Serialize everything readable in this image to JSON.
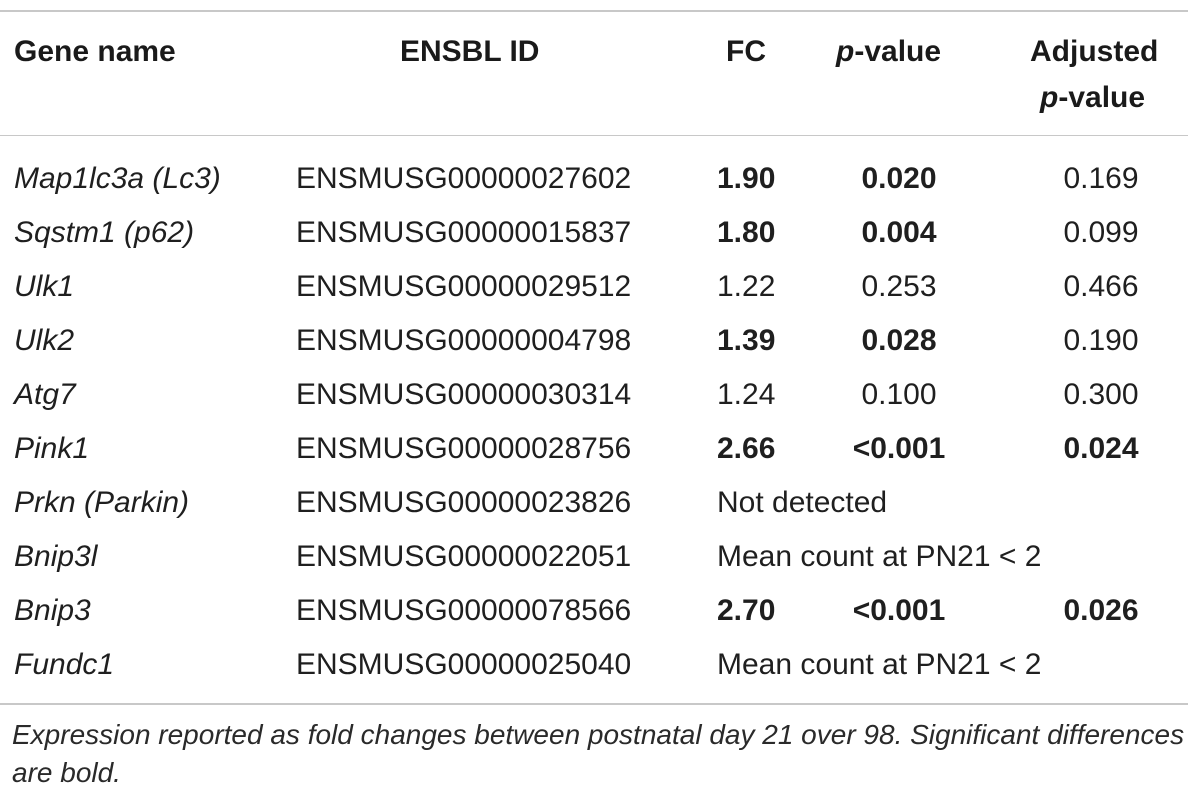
{
  "table": {
    "headers": {
      "gene": "Gene name",
      "ensbl": "ENSBL ID",
      "fc": "FC",
      "pvalue_italic": "p",
      "pvalue_rest": "-value",
      "adjusted_line1": "Adjusted",
      "adjusted_italic": "p",
      "adjusted_rest": "-value"
    },
    "rows": [
      {
        "gene": "Map1lc3a (Lc3)",
        "id": "ENSMUSG00000027602",
        "fc": "1.90",
        "p": "0.020",
        "adj": "0.169",
        "fc_bold": true,
        "p_bold": true,
        "adj_bold": false
      },
      {
        "gene": "Sqstm1 (p62)",
        "id": "ENSMUSG00000015837",
        "fc": "1.80",
        "p": "0.004",
        "adj": "0.099",
        "fc_bold": true,
        "p_bold": true,
        "adj_bold": false
      },
      {
        "gene": "Ulk1",
        "id": "ENSMUSG00000029512",
        "fc": "1.22",
        "p": "0.253",
        "adj": "0.466",
        "fc_bold": false,
        "p_bold": false,
        "adj_bold": false
      },
      {
        "gene": "Ulk2",
        "id": "ENSMUSG00000004798",
        "fc": "1.39",
        "p": "0.028",
        "adj": "0.190",
        "fc_bold": true,
        "p_bold": true,
        "adj_bold": false
      },
      {
        "gene": "Atg7",
        "id": "ENSMUSG00000030314",
        "fc": "1.24",
        "p": "0.100",
        "adj": "0.300",
        "fc_bold": false,
        "p_bold": false,
        "adj_bold": false
      },
      {
        "gene": "Pink1",
        "id": "ENSMUSG00000028756",
        "fc": "2.66",
        "p": "<0.001",
        "adj": "0.024",
        "fc_bold": true,
        "p_bold": true,
        "adj_bold": true
      },
      {
        "gene": "Prkn (Parkin)",
        "id": "ENSMUSG00000023826",
        "note": "Not detected"
      },
      {
        "gene": "Bnip3l",
        "id": "ENSMUSG00000022051",
        "note": "Mean count at PN21  < 2"
      },
      {
        "gene": "Bnip3",
        "id": "ENSMUSG00000078566",
        "fc": "2.70",
        "p": "<0.001",
        "adj": "0.026",
        "fc_bold": true,
        "p_bold": true,
        "adj_bold": true
      },
      {
        "gene": "Fundc1",
        "id": "ENSMUSG00000025040",
        "note": "Mean count at PN21  < 2"
      }
    ]
  },
  "footnote": "Expression reported as fold changes between postnatal day 21 over 98. Significant differences are bold."
}
